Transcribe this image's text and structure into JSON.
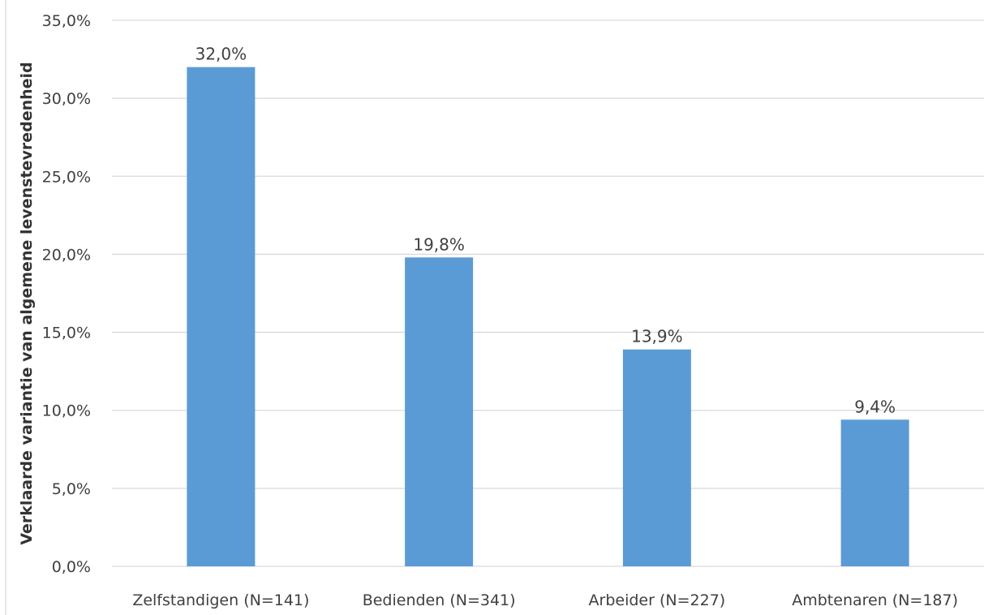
{
  "chart_data": {
    "type": "bar",
    "categories": [
      "Zelfstandigen (N=141)",
      "Bedienden (N=341)",
      "Arbeider (N=227)",
      "Ambtenaren (N=187)"
    ],
    "values": [
      32.0,
      19.8,
      13.9,
      9.4
    ],
    "data_labels": [
      "32,0%",
      "19,8%",
      "13,9%",
      "9,4%"
    ],
    "ylabel": "Verklaarde variantie van algemene levenstevredenheid",
    "ylim": [
      0,
      35
    ],
    "yticks": [
      0,
      5,
      10,
      15,
      20,
      25,
      30,
      35
    ],
    "ytick_labels": [
      "0,0%",
      "5,0%",
      "10,0%",
      "15,0%",
      "20,0%",
      "25,0%",
      "30,0%",
      "35,0%"
    ],
    "grid": true,
    "bar_color": "#5b9bd5"
  }
}
